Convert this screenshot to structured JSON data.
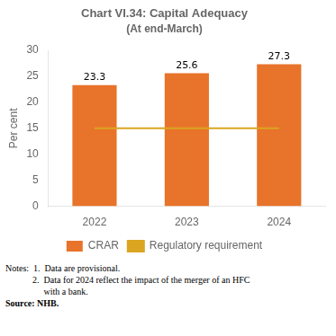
{
  "chart_data": {
    "type": "bar",
    "title": "Chart VI.34: Capital Adequacy",
    "subtitle": "(At end-March)",
    "categories": [
      "2022",
      "2023",
      "2024"
    ],
    "series": [
      {
        "name": "CRAR",
        "type": "bar",
        "color": "#E8732A",
        "values": [
          23.3,
          25.6,
          27.3
        ],
        "data_labels": true
      },
      {
        "name": "Regulatory requirement",
        "type": "line",
        "color": "#DAA520",
        "values": [
          15,
          15,
          15
        ],
        "marker": "none"
      }
    ],
    "ylabel": "Per cent",
    "ylim": [
      0,
      30
    ],
    "yticks": [
      0,
      5,
      10,
      15,
      20,
      25,
      30
    ],
    "grid": false,
    "legend": "bottom",
    "notes": [
      "Notes:  1.  Data are provisional.",
      "            2.  Data for 2024 reflect the impact of the merger of an HFC",
      "                 with a bank."
    ],
    "source": "Source: NHB."
  }
}
